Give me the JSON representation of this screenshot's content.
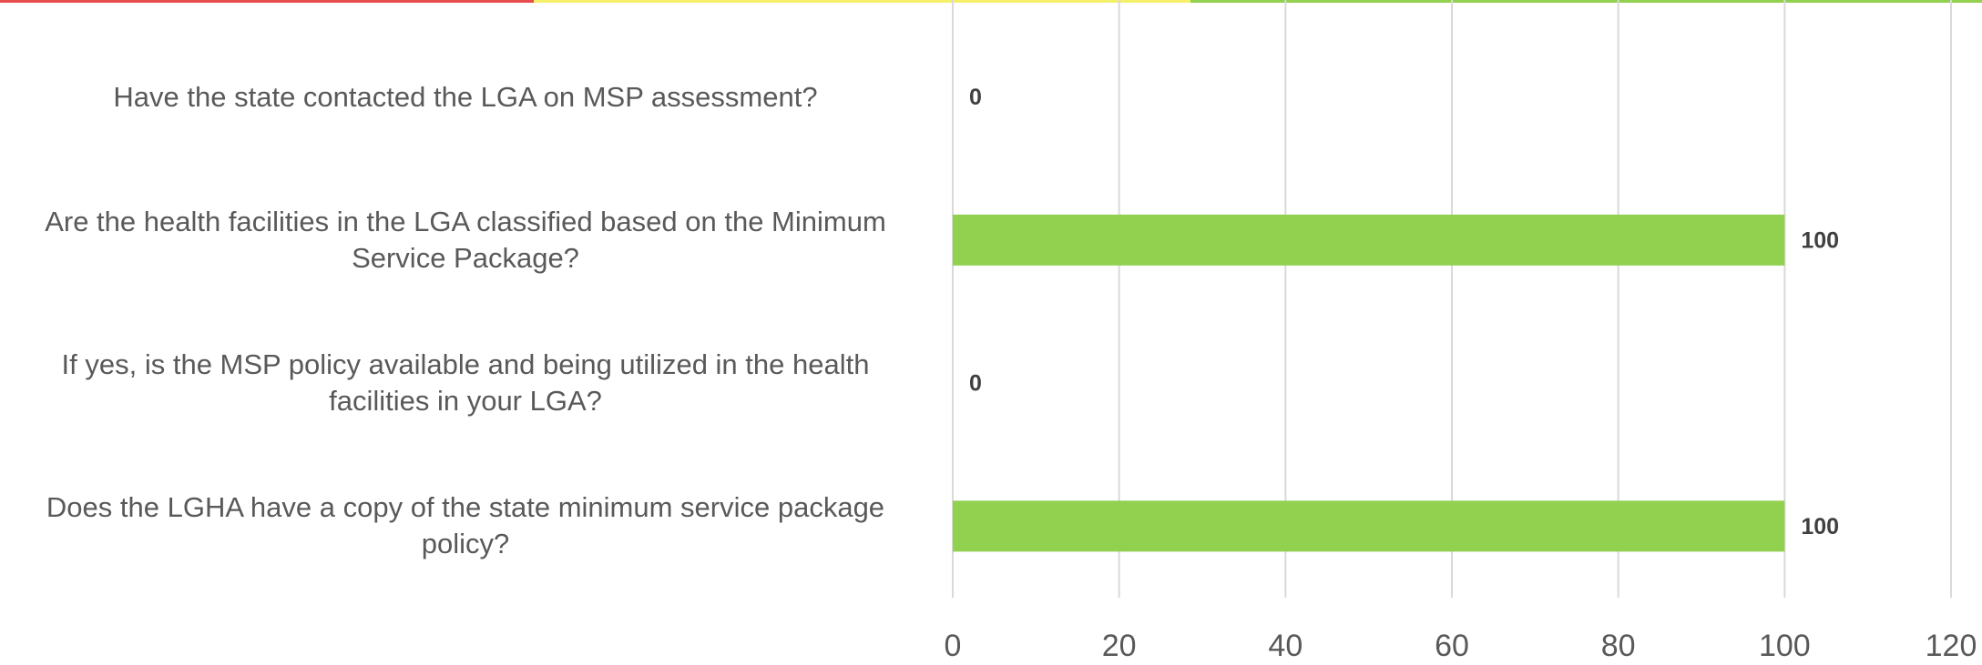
{
  "chart_data": {
    "type": "bar",
    "orientation": "horizontal",
    "categories": [
      "Have the state contacted the LGA on MSP assessment?",
      "Are the health facilities in the LGA classified based on the Minimum Service Package?",
      "If yes, is the MSP policy available and being utilized in the health facilities in your LGA?",
      "Does the LGHA have a copy of the state minimum service package policy?"
    ],
    "values": [
      0,
      100,
      0,
      100
    ],
    "color": "#92d050",
    "xlim": [
      0,
      120
    ],
    "xticks": [
      0,
      20,
      40,
      60,
      80,
      100,
      120
    ],
    "grid": true
  }
}
